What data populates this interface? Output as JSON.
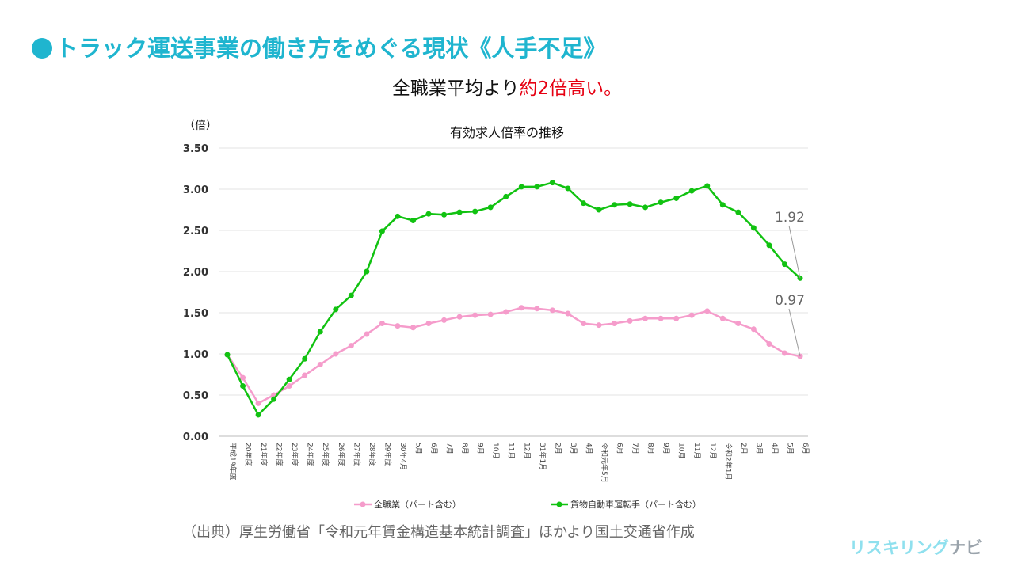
{
  "title": "トラック運送事業の働き方をめぐる現状《人手不足》",
  "subtitle": {
    "normal": "全職業平均より",
    "highlight": "約2倍高い。"
  },
  "source": "（出典）厚生労働省「令和元年賃金構造基本統計調査」ほかより国土交通省作成",
  "logo": {
    "main": "リスキリング",
    "accent": "ナビ"
  },
  "colors": {
    "accent": "#1fb5cf",
    "highlight": "#e60012",
    "green": "#11c211",
    "pink": "#f59ccb"
  },
  "chart_data": {
    "type": "line",
    "title": "有効求人倍率の推移",
    "ylabel": "（倍）",
    "ylim": [
      0,
      3.5
    ],
    "yticks": [
      "0.00",
      "0.50",
      "1.00",
      "1.50",
      "2.00",
      "2.50",
      "3.00",
      "3.50"
    ],
    "categories": [
      "平成19年度",
      "20年度",
      "21年度",
      "22年度",
      "23年度",
      "24年度",
      "25年度",
      "26年度",
      "27年度",
      "28年度",
      "29年度",
      "30年4月",
      "5月",
      "6月",
      "7月",
      "8月",
      "9月",
      "10月",
      "11月",
      "12月",
      "31年1月",
      "2月",
      "3月",
      "4月",
      "令和元年5月",
      "6月",
      "7月",
      "8月",
      "9月",
      "10月",
      "11月",
      "12月",
      "令和2年1月",
      "2月",
      "3月",
      "4月",
      "5月",
      "6月"
    ],
    "series": [
      {
        "name": "全職業（パート含む）",
        "color": "#f59ccb",
        "end_label": "0.97",
        "values": [
          0.99,
          0.71,
          0.4,
          0.5,
          0.61,
          0.74,
          0.87,
          1.0,
          1.1,
          1.24,
          1.37,
          1.34,
          1.32,
          1.37,
          1.41,
          1.45,
          1.47,
          1.48,
          1.51,
          1.56,
          1.55,
          1.53,
          1.49,
          1.37,
          1.35,
          1.37,
          1.4,
          1.43,
          1.43,
          1.43,
          1.47,
          1.52,
          1.43,
          1.37,
          1.3,
          1.12,
          1.01,
          0.97
        ]
      },
      {
        "name": "貨物自動車運転手（パート含む）",
        "color": "#11c211",
        "end_label": "1.92",
        "values": [
          0.99,
          0.61,
          0.26,
          0.45,
          0.69,
          0.94,
          1.27,
          1.54,
          1.71,
          2.0,
          2.49,
          2.67,
          2.62,
          2.7,
          2.69,
          2.72,
          2.73,
          2.78,
          2.91,
          3.03,
          3.03,
          3.08,
          3.01,
          2.83,
          2.75,
          2.81,
          2.82,
          2.78,
          2.84,
          2.89,
          2.98,
          3.04,
          2.81,
          2.72,
          2.53,
          2.32,
          2.09,
          1.92
        ]
      }
    ],
    "grid": true,
    "legend": "bottom"
  }
}
